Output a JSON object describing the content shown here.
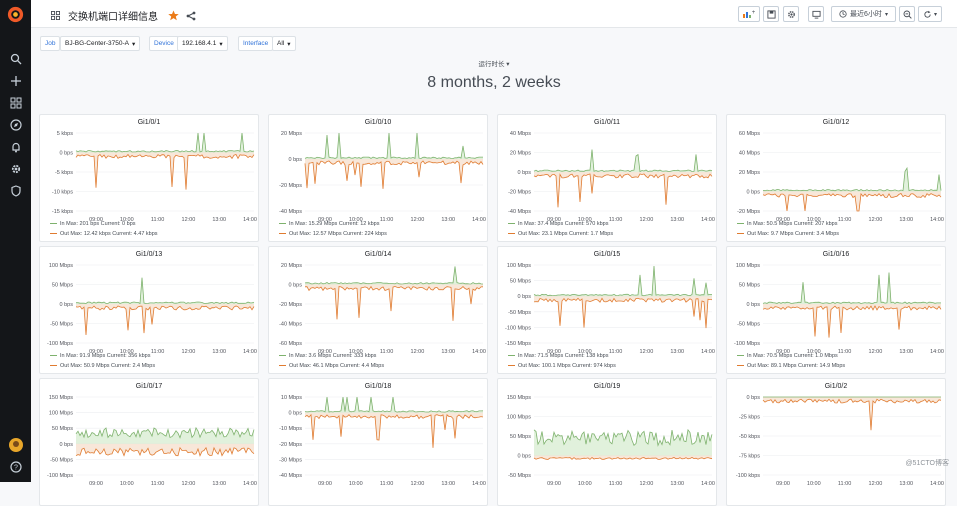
{
  "dashboard": {
    "title": "交换机端口详细信息",
    "time_range": "最近6小时"
  },
  "variables": [
    {
      "label": "Job",
      "value": "BJ-BG-Center-3750-A"
    },
    {
      "label": "Device",
      "value": "192.168.4.1"
    },
    {
      "label": "Interface",
      "value": "All"
    }
  ],
  "row_title": "运行时长",
  "stat_value": "8 months, 2 weeks",
  "x_ticks": [
    "09:00",
    "10:00",
    "11:00",
    "12:00",
    "13:00",
    "14:00"
  ],
  "colors": {
    "in": "#7eb26d",
    "out": "#e07b30",
    "accent": "#eb7b18",
    "fill_out": "#f5ddc9",
    "fill_in": "#d4ebcd"
  },
  "panels": [
    {
      "title": "Gi1/0/1",
      "y_ticks": [
        "5 kbps",
        "0 bps",
        "-5 kbps",
        "-10 kbps",
        "-15 kbps"
      ],
      "ylim": [
        -15,
        5
      ],
      "legend_in": "In  Max: 201 bps  Current: 0 bps",
      "legend_out": "Out  Max: 12.42 kbps  Current: 4.47 kbps"
    },
    {
      "title": "Gi1/0/10",
      "y_ticks": [
        "20 Mbps",
        "0 bps",
        "-20 Mbps",
        "-40 Mbps"
      ],
      "ylim": [
        -40,
        20
      ],
      "legend_in": "In  Max: 15.29 Mbps  Current: 12 kbps",
      "legend_out": "Out  Max: 12.57 Mbps  Current: 224 kbps"
    },
    {
      "title": "Gi1/0/11",
      "y_ticks": [
        "40 Mbps",
        "20 Mbps",
        "0 bps",
        "-20 Mbps",
        "-40 Mbps"
      ],
      "ylim": [
        -40,
        40
      ],
      "legend_in": "In  Max: 37.4 Mbps  Current: 570 kbps",
      "legend_out": "Out  Max: 23.1 Mbps  Current: 1.7 Mbps"
    },
    {
      "title": "Gi1/0/12",
      "y_ticks": [
        "60 Mbps",
        "40 Mbps",
        "20 Mbps",
        "0 bps",
        "-20 Mbps"
      ],
      "ylim": [
        -20,
        60
      ],
      "legend_in": "In  Max: 50.5 Mbps  Current: 207 kbps",
      "legend_out": "Out  Max: 9.7 Mbps  Current: 3.4 Mbps"
    },
    {
      "title": "Gi1/0/13",
      "y_ticks": [
        "100 Mbps",
        "50 Mbps",
        "0 bps",
        "-50 Mbps",
        "-100 Mbps"
      ],
      "ylim": [
        -100,
        100
      ],
      "legend_in": "In  Max: 91.9 Mbps  Current: 356 kbps",
      "legend_out": "Out  Max: 50.9 Mbps  Current: 2.4 Mbps"
    },
    {
      "title": "Gi1/0/14",
      "y_ticks": [
        "20 Mbps",
        "0 bps",
        "-20 Mbps",
        "-40 Mbps",
        "-60 Mbps"
      ],
      "ylim": [
        -60,
        20
      ],
      "legend_in": "In  Max: 3.6 Mbps  Current: 333 kbps",
      "legend_out": "Out  Max: 46.1 Mbps  Current: 4.4 Mbps"
    },
    {
      "title": "Gi1/0/15",
      "y_ticks": [
        "100 Mbps",
        "50 Mbps",
        "0 bps",
        "-50 Mbps",
        "-100 Mbps",
        "-150 Mbps"
      ],
      "ylim": [
        -150,
        100
      ],
      "legend_in": "In  Max: 71.5 Mbps  Current: 138 kbps",
      "legend_out": "Out  Max: 100.1 Mbps  Current: 974 kbps"
    },
    {
      "title": "Gi1/0/16",
      "y_ticks": [
        "100 Mbps",
        "50 Mbps",
        "0 bps",
        "-50 Mbps",
        "-100 Mbps"
      ],
      "ylim": [
        -100,
        100
      ],
      "legend_in": "In  Max: 70.5 Mbps  Current: 1.0 Mbps",
      "legend_out": "Out  Max: 89.1 Mbps  Current: 14.9 Mbps"
    },
    {
      "title": "Gi1/0/17",
      "y_ticks": [
        "150 Mbps",
        "100 Mbps",
        "50 Mbps",
        "0 bps",
        "-50 Mbps",
        "-100 Mbps"
      ],
      "ylim": [
        -100,
        150
      ],
      "legend_in": "",
      "legend_out": ""
    },
    {
      "title": "Gi1/0/18",
      "y_ticks": [
        "10 Mbps",
        "0 bps",
        "-10 Mbps",
        "-20 Mbps",
        "-30 Mbps",
        "-40 Mbps"
      ],
      "ylim": [
        -40,
        10
      ],
      "legend_in": "",
      "legend_out": ""
    },
    {
      "title": "Gi1/0/19",
      "y_ticks": [
        "150 Mbps",
        "100 Mbps",
        "50 Mbps",
        "0 bps",
        "-50 Mbps"
      ],
      "ylim": [
        -50,
        150
      ],
      "legend_in": "",
      "legend_out": ""
    },
    {
      "title": "Gi1/0/2",
      "y_ticks": [
        "0 bps",
        "-25 kbps",
        "-50 kbps",
        "-75 kbps",
        "-100 kbps"
      ],
      "ylim": [
        -100,
        0
      ],
      "legend_in": "",
      "legend_out": ""
    }
  ],
  "watermark": "@51CTO博客"
}
